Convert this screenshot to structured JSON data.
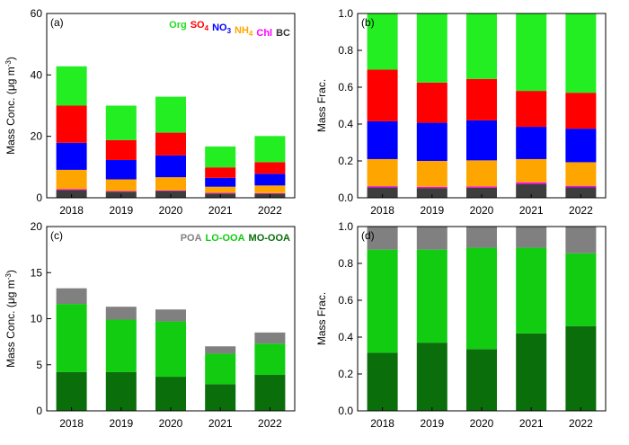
{
  "chart_data": [
    {
      "id": "a",
      "panel_label": "(a)",
      "type": "bar",
      "stacked": true,
      "ylabel_main": "Mass Conc. (μg m",
      "ylabel_sup": "-3",
      "ylabel_end": ")",
      "ylim": [
        0,
        60
      ],
      "yticks": [
        "0",
        "20",
        "40",
        "60"
      ],
      "ytick_values": [
        0,
        20,
        40,
        60
      ],
      "categories": [
        "2018",
        "2019",
        "2020",
        "2021",
        "2022"
      ],
      "series": [
        {
          "name": "BC",
          "color": "#3d3d3d",
          "values": [
            2.5,
            2.0,
            2.2,
            1.4,
            1.3
          ]
        },
        {
          "name": "Chl",
          "color": "#ff00ff",
          "values": [
            0.3,
            0.2,
            0.2,
            0.2,
            0.2
          ]
        },
        {
          "name": "NH4",
          "color": "#ffa500",
          "values": [
            6.3,
            3.8,
            4.3,
            2.0,
            2.5
          ]
        },
        {
          "name": "NO3",
          "color": "#0000ff",
          "values": [
            8.8,
            6.3,
            7.1,
            2.9,
            3.8
          ]
        },
        {
          "name": "SO4",
          "color": "#ff0000",
          "values": [
            12.1,
            6.5,
            7.4,
            3.4,
            3.8
          ]
        },
        {
          "name": "Org",
          "color": "#22ee22",
          "values": [
            12.8,
            11.2,
            11.7,
            6.8,
            8.5
          ]
        }
      ],
      "legend": [
        {
          "text": "Org",
          "color": "#22dd22"
        },
        {
          "text": "SO",
          "sub": "4",
          "color": "#ff0000"
        },
        {
          "text": "NO",
          "sub": "3",
          "color": "#0000ff"
        },
        {
          "text": "NH",
          "sub": "4",
          "color": "#ffa500"
        },
        {
          "text": "Chl",
          "color": "#ff00ff"
        },
        {
          "text": "BC",
          "color": "#333333"
        }
      ],
      "legend_placement": "top-right"
    },
    {
      "id": "b",
      "panel_label": "(b)",
      "type": "bar",
      "stacked": true,
      "ylabel_main": "Mass Frac.",
      "ylim": [
        0,
        1
      ],
      "yticks": [
        "0.0",
        "0.2",
        "0.4",
        "0.6",
        "0.8",
        "1.0"
      ],
      "ytick_values": [
        0,
        0.2,
        0.4,
        0.6,
        0.8,
        1.0
      ],
      "categories": [
        "2018",
        "2019",
        "2020",
        "2021",
        "2022"
      ],
      "series": [
        {
          "name": "BC",
          "color": "#3d3d3d",
          "values": [
            0.057,
            0.053,
            0.055,
            0.075,
            0.058
          ]
        },
        {
          "name": "Chl",
          "color": "#ff00ff",
          "values": [
            0.006,
            0.006,
            0.006,
            0.008,
            0.007
          ]
        },
        {
          "name": "NH4",
          "color": "#ffa500",
          "values": [
            0.147,
            0.141,
            0.142,
            0.127,
            0.128
          ]
        },
        {
          "name": "NO3",
          "color": "#0000ff",
          "values": [
            0.205,
            0.207,
            0.217,
            0.175,
            0.182
          ]
        },
        {
          "name": "SO4",
          "color": "#ff0000",
          "values": [
            0.28,
            0.218,
            0.225,
            0.195,
            0.195
          ]
        },
        {
          "name": "Org",
          "color": "#22ee22",
          "values": [
            0.305,
            0.375,
            0.355,
            0.42,
            0.43
          ]
        }
      ]
    },
    {
      "id": "c",
      "panel_label": "(c)",
      "type": "bar",
      "stacked": true,
      "ylabel_main": "Mass Conc. (μg m",
      "ylabel_sup": "-3",
      "ylabel_end": ")",
      "ylim": [
        0,
        20
      ],
      "yticks": [
        "0",
        "5",
        "10",
        "15",
        "20"
      ],
      "ytick_values": [
        0,
        5,
        10,
        15,
        20
      ],
      "categories": [
        "2018",
        "2019",
        "2020",
        "2021",
        "2022"
      ],
      "series": [
        {
          "name": "MO-OOA",
          "color": "#0a6e0a",
          "values": [
            4.2,
            4.2,
            3.7,
            2.9,
            3.9
          ]
        },
        {
          "name": "LO-OOA",
          "color": "#11cc11",
          "values": [
            7.4,
            5.7,
            6.0,
            3.3,
            3.4
          ]
        },
        {
          "name": "POA",
          "color": "#808080",
          "values": [
            1.7,
            1.4,
            1.3,
            0.8,
            1.2
          ]
        }
      ],
      "legend": [
        {
          "text": "POA",
          "color": "#808080"
        },
        {
          "text": "LO-OOA",
          "color": "#11cc11"
        },
        {
          "text": "MO-OOA",
          "color": "#0a6e0a"
        }
      ],
      "legend_placement": "top-right"
    },
    {
      "id": "d",
      "panel_label": "(d)",
      "type": "bar",
      "stacked": true,
      "ylabel_main": "Mass Frac.",
      "ylim": [
        0,
        1
      ],
      "yticks": [
        "0.0",
        "0.2",
        "0.4",
        "0.6",
        "0.8",
        "1.0"
      ],
      "ytick_values": [
        0,
        0.2,
        0.4,
        0.6,
        0.8,
        1.0
      ],
      "categories": [
        "2018",
        "2019",
        "2020",
        "2021",
        "2022"
      ],
      "series": [
        {
          "name": "MO-OOA",
          "color": "#0a6e0a",
          "values": [
            0.315,
            0.37,
            0.335,
            0.42,
            0.46
          ]
        },
        {
          "name": "LO-OOA",
          "color": "#11cc11",
          "values": [
            0.56,
            0.505,
            0.55,
            0.465,
            0.395
          ]
        },
        {
          "name": "POA",
          "color": "#808080",
          "values": [
            0.125,
            0.125,
            0.115,
            0.115,
            0.145
          ]
        }
      ]
    }
  ]
}
